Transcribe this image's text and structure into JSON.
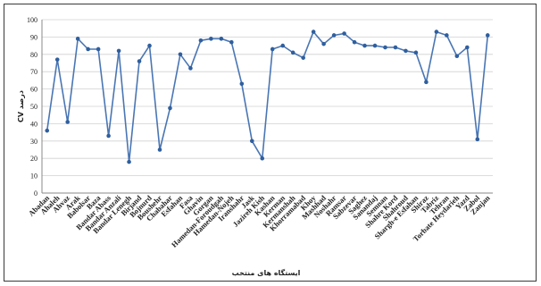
{
  "chart_data": {
    "type": "line",
    "title": "",
    "xlabel": "ایستگاه های منتخب",
    "ylabel": "درصد CV",
    "ylim": [
      0,
      100
    ],
    "yticks": [
      0,
      10,
      20,
      30,
      40,
      50,
      60,
      70,
      80,
      90,
      100
    ],
    "grid": "horizontal",
    "legend": "none",
    "colors": {
      "line": "#4a76b3",
      "marker": "#2f5f9e",
      "grid": "#d0d0d0",
      "axis": "#888888"
    },
    "categories": [
      "Abadan",
      "Ahaleh",
      "Ahvaz",
      "Arak",
      "Babolsar",
      "Baza",
      "Bandar Abass",
      "Bandar Anzali",
      "Bandar Lenegh",
      "Birjand",
      "Bojnurd",
      "Boushehr",
      "Chabahar",
      "Esfahan",
      "Fasa",
      "Ghavin",
      "Gorgan",
      "Hamedan-Foroudgah",
      "Hamedan-Nojeh",
      "Iranshahr",
      "Jask",
      "Jazireh Kish",
      "Kashan",
      "Kerman",
      "Kermanshah",
      "Khorramabad",
      "Khoy",
      "Mashhad",
      "Noshahr",
      "Ramsar",
      "Sabzevar",
      "Saghez",
      "Sanandaj",
      "Semnan",
      "Shahre Kord",
      "Shahroud",
      "Shargh-e Esfahan",
      "Shiraz",
      "Tabriz",
      "Tehran",
      "Torbate Heydarieh",
      "Yazd",
      "Zabol",
      "Zanjan"
    ],
    "series": [
      {
        "values": [
          36,
          77,
          41,
          89,
          83,
          83,
          33,
          82,
          18,
          76,
          85,
          25,
          49,
          80,
          72,
          88,
          89,
          89,
          87,
          63,
          30,
          20,
          83,
          85,
          81,
          78,
          93,
          86,
          91,
          92,
          87,
          85,
          85,
          84,
          84,
          82,
          81,
          64,
          93,
          91,
          79,
          84,
          31,
          91
        ]
      }
    ]
  }
}
